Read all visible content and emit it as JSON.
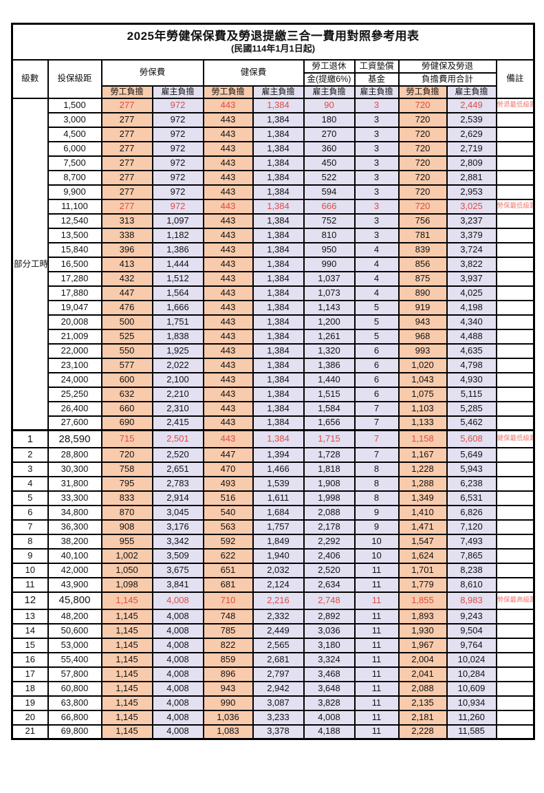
{
  "page": {
    "title": "2025年勞健保保費及勞退提繳三合一費用對照參考用表",
    "subtitle": "(民國114年1月1日起)"
  },
  "colors": {
    "employee_bg": "#F8CBAD",
    "employer_bg": "#E2E0F1",
    "highlight_text": "#E04A42",
    "remark_text": "#F07A70",
    "border": "#000000"
  },
  "columns": {
    "level": "級數",
    "bracket": "投保級距",
    "labor_fee": "勞保費",
    "health_fee": "健保費",
    "pension": [
      "勞工退休",
      "金(提繳6%)"
    ],
    "wage_fund": [
      "工資墊償",
      "基金"
    ],
    "combined": [
      "勞健保及勞退",
      "負擔費用合計"
    ],
    "remark": "備註",
    "employee_label": "勞工負擔",
    "employer_label": "雇主負擔"
  },
  "part_time_label": "部分工時",
  "part_time_rowspan": 23,
  "rows": [
    {
      "level": "",
      "bracket": "1,500",
      "values": [
        "277",
        "972",
        "443",
        "1,384",
        "90",
        "3",
        "720",
        "2,449"
      ],
      "remark": "勞退最低級距",
      "highlight": true,
      "emphasis": false,
      "thick_top": false
    },
    {
      "level": "",
      "bracket": "3,000",
      "values": [
        "277",
        "972",
        "443",
        "1,384",
        "180",
        "3",
        "720",
        "2,539"
      ],
      "remark": "",
      "highlight": false,
      "emphasis": false,
      "thick_top": false
    },
    {
      "level": "",
      "bracket": "4,500",
      "values": [
        "277",
        "972",
        "443",
        "1,384",
        "270",
        "3",
        "720",
        "2,629"
      ],
      "remark": "",
      "highlight": false,
      "emphasis": false,
      "thick_top": false
    },
    {
      "level": "",
      "bracket": "6,000",
      "values": [
        "277",
        "972",
        "443",
        "1,384",
        "360",
        "3",
        "720",
        "2,719"
      ],
      "remark": "",
      "highlight": false,
      "emphasis": false,
      "thick_top": false
    },
    {
      "level": "",
      "bracket": "7,500",
      "values": [
        "277",
        "972",
        "443",
        "1,384",
        "450",
        "3",
        "720",
        "2,809"
      ],
      "remark": "",
      "highlight": false,
      "emphasis": false,
      "thick_top": false
    },
    {
      "level": "",
      "bracket": "8,700",
      "values": [
        "277",
        "972",
        "443",
        "1,384",
        "522",
        "3",
        "720",
        "2,881"
      ],
      "remark": "",
      "highlight": false,
      "emphasis": false,
      "thick_top": false
    },
    {
      "level": "",
      "bracket": "9,900",
      "values": [
        "277",
        "972",
        "443",
        "1,384",
        "594",
        "3",
        "720",
        "2,953"
      ],
      "remark": "",
      "highlight": false,
      "emphasis": false,
      "thick_top": false
    },
    {
      "level": "",
      "bracket": "11,100",
      "values": [
        "277",
        "972",
        "443",
        "1,384",
        "666",
        "3",
        "720",
        "3,025"
      ],
      "remark": "勞保最低級距",
      "highlight": true,
      "emphasis": false,
      "thick_top": false
    },
    {
      "level": "",
      "bracket": "12,540",
      "values": [
        "313",
        "1,097",
        "443",
        "1,384",
        "752",
        "3",
        "756",
        "3,237"
      ],
      "remark": "",
      "highlight": false,
      "emphasis": false,
      "thick_top": false
    },
    {
      "level": "",
      "bracket": "13,500",
      "values": [
        "338",
        "1,182",
        "443",
        "1,384",
        "810",
        "3",
        "781",
        "3,379"
      ],
      "remark": "",
      "highlight": false,
      "emphasis": false,
      "thick_top": false
    },
    {
      "level": "",
      "bracket": "15,840",
      "values": [
        "396",
        "1,386",
        "443",
        "1,384",
        "950",
        "4",
        "839",
        "3,724"
      ],
      "remark": "",
      "highlight": false,
      "emphasis": false,
      "thick_top": false
    },
    {
      "level": "",
      "bracket": "16,500",
      "values": [
        "413",
        "1,444",
        "443",
        "1,384",
        "990",
        "4",
        "856",
        "3,822"
      ],
      "remark": "",
      "highlight": false,
      "emphasis": false,
      "thick_top": false
    },
    {
      "level": "",
      "bracket": "17,280",
      "values": [
        "432",
        "1,512",
        "443",
        "1,384",
        "1,037",
        "4",
        "875",
        "3,937"
      ],
      "remark": "",
      "highlight": false,
      "emphasis": false,
      "thick_top": false
    },
    {
      "level": "",
      "bracket": "17,880",
      "values": [
        "447",
        "1,564",
        "443",
        "1,384",
        "1,073",
        "4",
        "890",
        "4,025"
      ],
      "remark": "",
      "highlight": false,
      "emphasis": false,
      "thick_top": false
    },
    {
      "level": "",
      "bracket": "19,047",
      "values": [
        "476",
        "1,666",
        "443",
        "1,384",
        "1,143",
        "5",
        "919",
        "4,198"
      ],
      "remark": "",
      "highlight": false,
      "emphasis": false,
      "thick_top": false
    },
    {
      "level": "",
      "bracket": "20,008",
      "values": [
        "500",
        "1,751",
        "443",
        "1,384",
        "1,200",
        "5",
        "943",
        "4,340"
      ],
      "remark": "",
      "highlight": false,
      "emphasis": false,
      "thick_top": false
    },
    {
      "level": "",
      "bracket": "21,009",
      "values": [
        "525",
        "1,838",
        "443",
        "1,384",
        "1,261",
        "5",
        "968",
        "4,488"
      ],
      "remark": "",
      "highlight": false,
      "emphasis": false,
      "thick_top": false
    },
    {
      "level": "",
      "bracket": "22,000",
      "values": [
        "550",
        "1,925",
        "443",
        "1,384",
        "1,320",
        "6",
        "993",
        "4,635"
      ],
      "remark": "",
      "highlight": false,
      "emphasis": false,
      "thick_top": false
    },
    {
      "level": "",
      "bracket": "23,100",
      "values": [
        "577",
        "2,022",
        "443",
        "1,384",
        "1,386",
        "6",
        "1,020",
        "4,798"
      ],
      "remark": "",
      "highlight": false,
      "emphasis": false,
      "thick_top": false
    },
    {
      "level": "",
      "bracket": "24,000",
      "values": [
        "600",
        "2,100",
        "443",
        "1,384",
        "1,440",
        "6",
        "1,043",
        "4,930"
      ],
      "remark": "",
      "highlight": false,
      "emphasis": false,
      "thick_top": false
    },
    {
      "level": "",
      "bracket": "25,250",
      "values": [
        "632",
        "2,210",
        "443",
        "1,384",
        "1,515",
        "6",
        "1,075",
        "5,115"
      ],
      "remark": "",
      "highlight": false,
      "emphasis": false,
      "thick_top": false
    },
    {
      "level": "",
      "bracket": "26,400",
      "values": [
        "660",
        "2,310",
        "443",
        "1,384",
        "1,584",
        "7",
        "1,103",
        "5,285"
      ],
      "remark": "",
      "highlight": false,
      "emphasis": false,
      "thick_top": false
    },
    {
      "level": "",
      "bracket": "27,600",
      "values": [
        "690",
        "2,415",
        "443",
        "1,384",
        "1,656",
        "7",
        "1,133",
        "5,462"
      ],
      "remark": "",
      "highlight": false,
      "emphasis": false,
      "thick_top": false
    },
    {
      "level": "1",
      "bracket": "28,590",
      "values": [
        "715",
        "2,501",
        "443",
        "1,384",
        "1,715",
        "7",
        "1,158",
        "5,608"
      ],
      "remark": "健保最低級距",
      "highlight": true,
      "emphasis": true,
      "thick_top": true
    },
    {
      "level": "2",
      "bracket": "28,800",
      "values": [
        "720",
        "2,520",
        "447",
        "1,394",
        "1,728",
        "7",
        "1,167",
        "5,649"
      ],
      "remark": "",
      "highlight": false,
      "emphasis": false,
      "thick_top": false
    },
    {
      "level": "3",
      "bracket": "30,300",
      "values": [
        "758",
        "2,651",
        "470",
        "1,466",
        "1,818",
        "8",
        "1,228",
        "5,943"
      ],
      "remark": "",
      "highlight": false,
      "emphasis": false,
      "thick_top": false
    },
    {
      "level": "4",
      "bracket": "31,800",
      "values": [
        "795",
        "2,783",
        "493",
        "1,539",
        "1,908",
        "8",
        "1,288",
        "6,238"
      ],
      "remark": "",
      "highlight": false,
      "emphasis": false,
      "thick_top": false
    },
    {
      "level": "5",
      "bracket": "33,300",
      "values": [
        "833",
        "2,914",
        "516",
        "1,611",
        "1,998",
        "8",
        "1,349",
        "6,531"
      ],
      "remark": "",
      "highlight": false,
      "emphasis": false,
      "thick_top": false
    },
    {
      "level": "6",
      "bracket": "34,800",
      "values": [
        "870",
        "3,045",
        "540",
        "1,684",
        "2,088",
        "9",
        "1,410",
        "6,826"
      ],
      "remark": "",
      "highlight": false,
      "emphasis": false,
      "thick_top": false
    },
    {
      "level": "7",
      "bracket": "36,300",
      "values": [
        "908",
        "3,176",
        "563",
        "1,757",
        "2,178",
        "9",
        "1,471",
        "7,120"
      ],
      "remark": "",
      "highlight": false,
      "emphasis": false,
      "thick_top": false
    },
    {
      "level": "8",
      "bracket": "38,200",
      "values": [
        "955",
        "3,342",
        "592",
        "1,849",
        "2,292",
        "10",
        "1,547",
        "7,493"
      ],
      "remark": "",
      "highlight": false,
      "emphasis": false,
      "thick_top": false
    },
    {
      "level": "9",
      "bracket": "40,100",
      "values": [
        "1,002",
        "3,509",
        "622",
        "1,940",
        "2,406",
        "10",
        "1,624",
        "7,865"
      ],
      "remark": "",
      "highlight": false,
      "emphasis": false,
      "thick_top": false
    },
    {
      "level": "10",
      "bracket": "42,000",
      "values": [
        "1,050",
        "3,675",
        "651",
        "2,032",
        "2,520",
        "11",
        "1,701",
        "8,238"
      ],
      "remark": "",
      "highlight": false,
      "emphasis": false,
      "thick_top": false
    },
    {
      "level": "11",
      "bracket": "43,900",
      "values": [
        "1,098",
        "3,841",
        "681",
        "2,124",
        "2,634",
        "11",
        "1,779",
        "8,610"
      ],
      "remark": "",
      "highlight": false,
      "emphasis": false,
      "thick_top": false
    },
    {
      "level": "12",
      "bracket": "45,800",
      "values": [
        "1,145",
        "4,008",
        "710",
        "2,216",
        "2,748",
        "11",
        "1,855",
        "8,983"
      ],
      "remark": "勞保最高級距",
      "highlight": true,
      "emphasis": true,
      "thick_top": false
    },
    {
      "level": "13",
      "bracket": "48,200",
      "values": [
        "1,145",
        "4,008",
        "748",
        "2,332",
        "2,892",
        "11",
        "1,893",
        "9,243"
      ],
      "remark": "",
      "highlight": false,
      "emphasis": false,
      "thick_top": false
    },
    {
      "level": "14",
      "bracket": "50,600",
      "values": [
        "1,145",
        "4,008",
        "785",
        "2,449",
        "3,036",
        "11",
        "1,930",
        "9,504"
      ],
      "remark": "",
      "highlight": false,
      "emphasis": false,
      "thick_top": false
    },
    {
      "level": "15",
      "bracket": "53,000",
      "values": [
        "1,145",
        "4,008",
        "822",
        "2,565",
        "3,180",
        "11",
        "1,967",
        "9,764"
      ],
      "remark": "",
      "highlight": false,
      "emphasis": false,
      "thick_top": false
    },
    {
      "level": "16",
      "bracket": "55,400",
      "values": [
        "1,145",
        "4,008",
        "859",
        "2,681",
        "3,324",
        "11",
        "2,004",
        "10,024"
      ],
      "remark": "",
      "highlight": false,
      "emphasis": false,
      "thick_top": false
    },
    {
      "level": "17",
      "bracket": "57,800",
      "values": [
        "1,145",
        "4,008",
        "896",
        "2,797",
        "3,468",
        "11",
        "2,041",
        "10,284"
      ],
      "remark": "",
      "highlight": false,
      "emphasis": false,
      "thick_top": false
    },
    {
      "level": "18",
      "bracket": "60,800",
      "values": [
        "1,145",
        "4,008",
        "943",
        "2,942",
        "3,648",
        "11",
        "2,088",
        "10,609"
      ],
      "remark": "",
      "highlight": false,
      "emphasis": false,
      "thick_top": false
    },
    {
      "level": "19",
      "bracket": "63,800",
      "values": [
        "1,145",
        "4,008",
        "990",
        "3,087",
        "3,828",
        "11",
        "2,135",
        "10,934"
      ],
      "remark": "",
      "highlight": false,
      "emphasis": false,
      "thick_top": false
    },
    {
      "level": "20",
      "bracket": "66,800",
      "values": [
        "1,145",
        "4,008",
        "1,036",
        "3,233",
        "4,008",
        "11",
        "2,181",
        "11,260"
      ],
      "remark": "",
      "highlight": false,
      "emphasis": false,
      "thick_top": false
    },
    {
      "level": "21",
      "bracket": "69,800",
      "values": [
        "1,145",
        "4,008",
        "1,083",
        "3,378",
        "4,188",
        "11",
        "2,228",
        "11,585"
      ],
      "remark": "",
      "highlight": false,
      "emphasis": false,
      "thick_top": false
    }
  ]
}
